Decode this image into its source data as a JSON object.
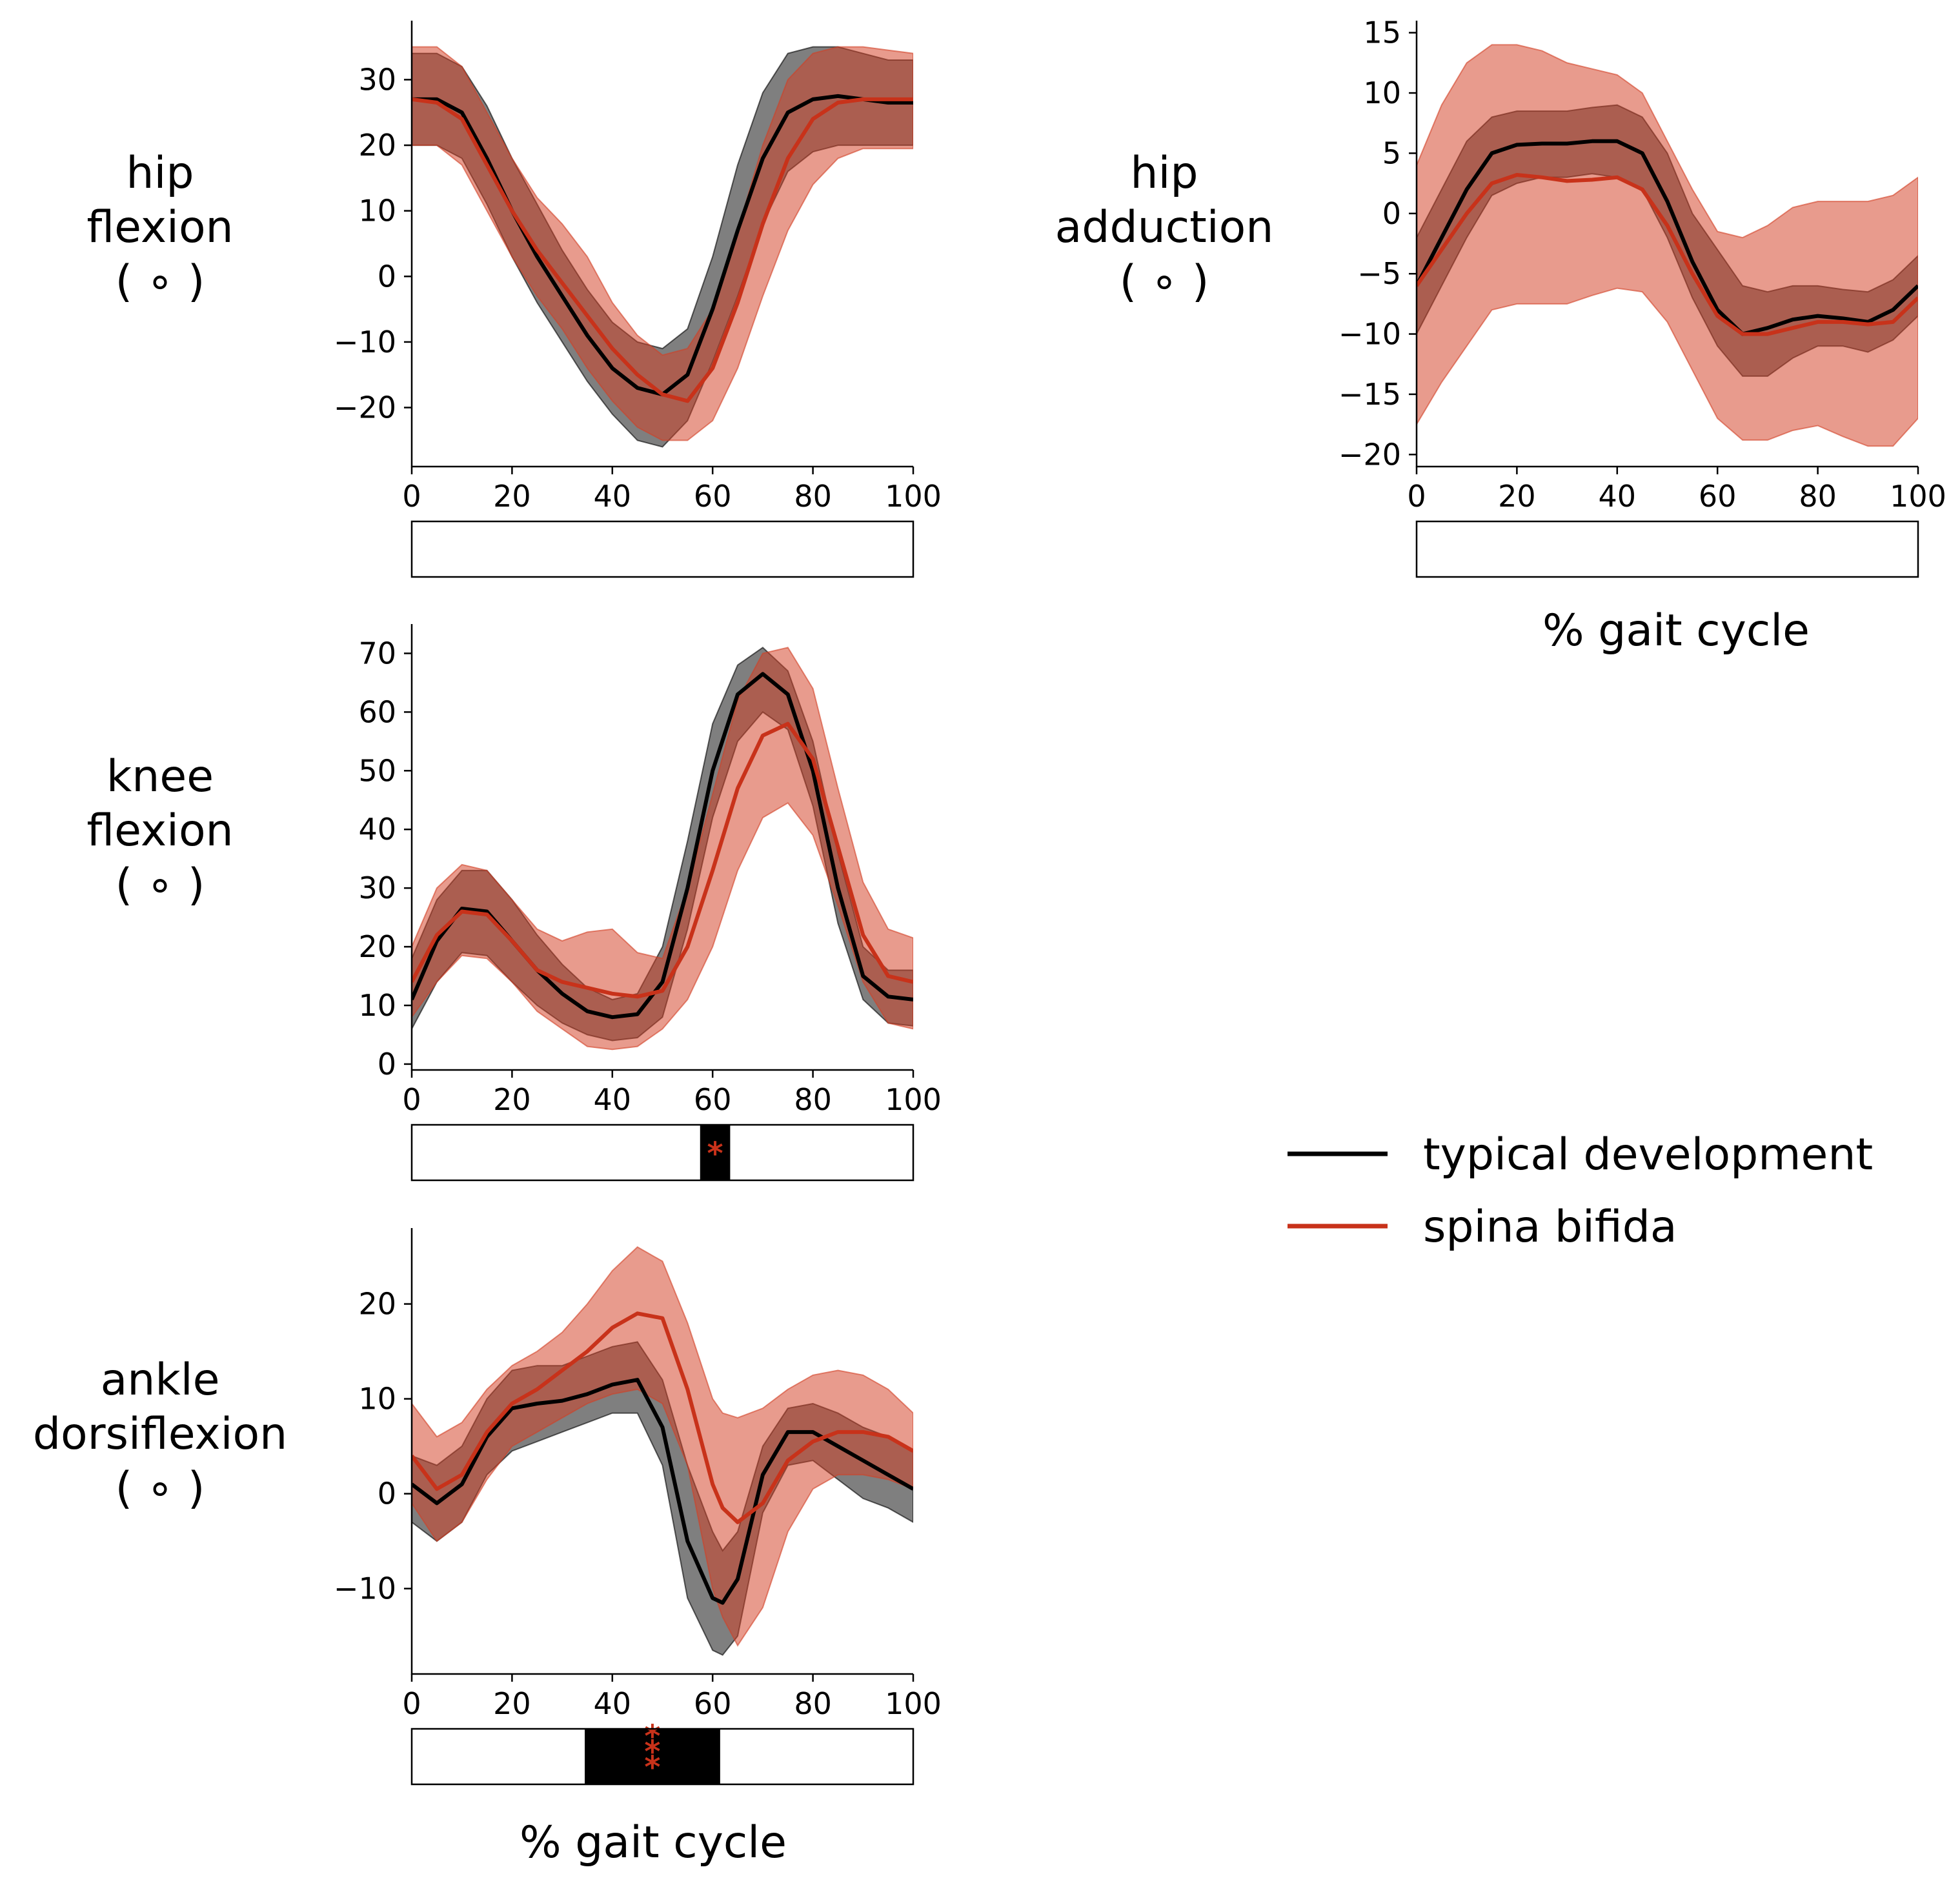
{
  "figure": {
    "xlabel_left": "% gait cycle",
    "xlabel_right": "% gait cycle"
  },
  "legend": {
    "placement": "center-right",
    "items": [
      {
        "label": "typical development",
        "color": "#000000"
      },
      {
        "label": "spina bifida",
        "color": "#c8321a"
      }
    ]
  },
  "colors": {
    "td_line": "#000000",
    "td_band": "#000000",
    "sb_line": "#c8321a",
    "sb_band": "#d23f25",
    "sig_bar": "#000000",
    "sig_star": "#c8321a"
  },
  "chart_data": [
    {
      "id": "hip-flexion",
      "type": "line",
      "ylabel_lines": [
        "hip",
        "flexion",
        "( ∘ )"
      ],
      "xlabel": "",
      "xlim": [
        0,
        100
      ],
      "xticks": [
        0,
        20,
        40,
        60,
        80,
        100
      ],
      "ylim": [
        -29,
        39
      ],
      "yticks": [
        -20,
        -10,
        0,
        10,
        20,
        30
      ],
      "grid": false,
      "series": [
        {
          "name": "typical development",
          "x": [
            0,
            5,
            10,
            15,
            20,
            25,
            30,
            35,
            40,
            45,
            50,
            55,
            60,
            65,
            70,
            75,
            80,
            85,
            90,
            95,
            100
          ],
          "mean": [
            27,
            27,
            25,
            18,
            10,
            3,
            -3,
            -9,
            -14,
            -17,
            -18,
            -15,
            -5,
            7,
            18,
            25,
            27,
            27.5,
            27,
            26.5,
            26.5
          ],
          "upper": [
            34,
            34,
            32,
            26,
            18,
            11,
            4,
            -2,
            -7,
            -10,
            -11,
            -8,
            3,
            17,
            28,
            34,
            35,
            35,
            34,
            33,
            33
          ],
          "lower": [
            20,
            20,
            18,
            11,
            3,
            -4,
            -10,
            -16,
            -21,
            -25,
            -26,
            -22,
            -13,
            -3,
            8,
            16,
            19,
            20,
            20,
            20,
            20
          ]
        },
        {
          "name": "spina bifida",
          "x": [
            0,
            5,
            10,
            15,
            20,
            25,
            30,
            35,
            40,
            45,
            50,
            55,
            60,
            65,
            70,
            75,
            80,
            85,
            90,
            95,
            100
          ],
          "mean": [
            27,
            26.5,
            24,
            17,
            10,
            4,
            -1,
            -6,
            -11,
            -15,
            -18,
            -19,
            -14,
            -4,
            8,
            18,
            24,
            26.5,
            27,
            27,
            27
          ],
          "upper": [
            35,
            35,
            32,
            25,
            18,
            12,
            8,
            3,
            -4,
            -9,
            -12,
            -11,
            -5,
            7,
            20,
            30,
            34,
            35,
            35,
            34.5,
            34
          ],
          "lower": [
            20,
            20,
            17,
            10,
            3,
            -3,
            -8,
            -14,
            -19,
            -23,
            -25,
            -25,
            -22,
            -14,
            -3,
            7,
            14,
            18,
            19.5,
            19.5,
            19.5
          ]
        }
      ],
      "significance": []
    },
    {
      "id": "hip-adduction",
      "type": "line",
      "ylabel_lines": [
        "hip",
        "adduction",
        "( ∘ )"
      ],
      "xlabel": "",
      "xlim": [
        0,
        100
      ],
      "xticks": [
        0,
        20,
        40,
        60,
        80,
        100
      ],
      "ylim": [
        -21,
        16
      ],
      "yticks": [
        -20,
        -15,
        -10,
        -5,
        0,
        5,
        10,
        15
      ],
      "grid": false,
      "series": [
        {
          "name": "typical development",
          "x": [
            0,
            5,
            10,
            15,
            20,
            25,
            30,
            35,
            40,
            45,
            50,
            55,
            60,
            65,
            70,
            75,
            80,
            85,
            90,
            95,
            100
          ],
          "mean": [
            -6,
            -2,
            2,
            5,
            5.7,
            5.8,
            5.8,
            6,
            6,
            5,
            1,
            -4,
            -8,
            -10,
            -9.5,
            -8.8,
            -8.5,
            -8.7,
            -9,
            -8,
            -6
          ],
          "upper": [
            -2,
            2,
            6,
            8,
            8.5,
            8.5,
            8.5,
            8.8,
            9,
            8,
            5,
            0,
            -3,
            -6,
            -6.5,
            -6,
            -6,
            -6.3,
            -6.5,
            -5.5,
            -3.5
          ],
          "lower": [
            -10,
            -6,
            -2,
            1.5,
            2.5,
            3,
            3,
            3.3,
            3,
            2,
            -2,
            -7,
            -11,
            -13.5,
            -13.5,
            -12,
            -11,
            -11,
            -11.5,
            -10.5,
            -8.5
          ]
        },
        {
          "name": "spina bifida",
          "x": [
            0,
            5,
            10,
            15,
            20,
            25,
            30,
            35,
            40,
            45,
            50,
            55,
            60,
            65,
            70,
            75,
            80,
            85,
            90,
            95,
            100
          ],
          "mean": [
            -6,
            -3,
            0,
            2.5,
            3.2,
            3,
            2.7,
            2.8,
            3,
            2,
            -1,
            -5,
            -8.5,
            -10,
            -10,
            -9.5,
            -9,
            -9,
            -9.2,
            -9,
            -7
          ],
          "upper": [
            4,
            9,
            12.5,
            14,
            14,
            13.5,
            12.5,
            12,
            11.5,
            10,
            6,
            2,
            -1.5,
            -2,
            -1,
            0.5,
            1,
            1,
            1,
            1.5,
            3
          ],
          "lower": [
            -17.5,
            -14,
            -11,
            -8,
            -7.5,
            -7.5,
            -7.5,
            -6.8,
            -6.2,
            -6.5,
            -9,
            -13,
            -17,
            -18.8,
            -18.8,
            -18,
            -17.6,
            -18.5,
            -19.3,
            -19.3,
            -17
          ]
        }
      ],
      "significance": []
    },
    {
      "id": "knee-flexion",
      "type": "line",
      "ylabel_lines": [
        "knee",
        "flexion",
        "( ∘ )"
      ],
      "xlabel": "",
      "xlim": [
        0,
        100
      ],
      "xticks": [
        0,
        20,
        40,
        60,
        80,
        100
      ],
      "ylim": [
        -1,
        75
      ],
      "yticks": [
        0,
        10,
        20,
        30,
        40,
        50,
        60,
        70
      ],
      "grid": false,
      "series": [
        {
          "name": "typical development",
          "x": [
            0,
            5,
            10,
            15,
            20,
            25,
            30,
            35,
            40,
            45,
            50,
            55,
            60,
            65,
            70,
            75,
            80,
            85,
            90,
            95,
            100
          ],
          "mean": [
            11,
            21,
            26.5,
            26,
            21,
            16,
            12,
            9,
            8,
            8.5,
            14,
            30,
            50,
            63,
            66.5,
            63,
            50,
            30,
            15,
            11.5,
            11
          ],
          "upper": [
            18,
            28,
            33,
            33,
            28,
            22,
            17,
            13,
            11,
            12,
            20,
            38,
            58,
            68,
            71,
            67,
            55,
            36,
            20,
            16,
            16
          ],
          "lower": [
            6,
            14,
            19,
            18.5,
            14,
            10,
            7,
            5,
            4,
            4.5,
            8,
            23,
            42,
            55,
            60,
            57,
            44,
            24,
            11,
            7,
            6.5
          ]
        },
        {
          "name": "spina bifida",
          "x": [
            0,
            5,
            10,
            15,
            20,
            25,
            30,
            35,
            40,
            45,
            50,
            55,
            60,
            65,
            70,
            75,
            80,
            85,
            90,
            95,
            100
          ],
          "mean": [
            14,
            22,
            26,
            25.5,
            21,
            16,
            14,
            13,
            12,
            11.5,
            12.5,
            20,
            33,
            47,
            56,
            58,
            52,
            37,
            22,
            15,
            14
          ],
          "upper": [
            20,
            30,
            34,
            33,
            28,
            23,
            21,
            22.5,
            23,
            19,
            18,
            30,
            46,
            62,
            70,
            71,
            64,
            47,
            31,
            23,
            21.5
          ],
          "lower": [
            8,
            14,
            18.5,
            18,
            14,
            9,
            6,
            3,
            2.5,
            3,
            6,
            11,
            20,
            33,
            42,
            44.5,
            39,
            27,
            14,
            7,
            6
          ]
        }
      ],
      "significance": [
        {
          "x_start": 57.5,
          "x_end": 63.5,
          "stars": "*"
        }
      ]
    },
    {
      "id": "ankle-dorsiflexion",
      "type": "line",
      "ylabel_lines": [
        "ankle",
        "dorsiflexion",
        "( ∘ )"
      ],
      "xlabel": "",
      "xlim": [
        0,
        100
      ],
      "xticks": [
        0,
        20,
        40,
        60,
        80,
        100
      ],
      "ylim": [
        -19,
        28
      ],
      "yticks": [
        -10,
        0,
        10,
        20
      ],
      "grid": false,
      "series": [
        {
          "name": "typical development",
          "x": [
            0,
            5,
            10,
            15,
            20,
            25,
            30,
            35,
            40,
            45,
            50,
            55,
            60,
            62,
            65,
            70,
            75,
            80,
            85,
            90,
            95,
            100
          ],
          "mean": [
            1,
            -1,
            1,
            6,
            9,
            9.5,
            9.8,
            10.5,
            11.5,
            12,
            7,
            -5,
            -11,
            -11.5,
            -9,
            2,
            6.5,
            6.5,
            5,
            3.5,
            2,
            0.5
          ],
          "upper": [
            4,
            3,
            5,
            10,
            13,
            13.5,
            13.5,
            14.5,
            15.5,
            16,
            12,
            3,
            -4,
            -6,
            -4,
            5,
            9,
            9.5,
            8.5,
            7,
            6,
            4.5
          ],
          "lower": [
            -3,
            -5,
            -3,
            2,
            4.5,
            5.5,
            6.5,
            7.5,
            8.5,
            8.5,
            3,
            -11,
            -16.5,
            -17,
            -15,
            -2,
            3,
            3.5,
            1.5,
            -0.5,
            -1.5,
            -3
          ]
        },
        {
          "name": "spina bifida",
          "x": [
            0,
            5,
            10,
            15,
            20,
            25,
            30,
            35,
            40,
            45,
            50,
            55,
            60,
            62,
            65,
            70,
            75,
            80,
            85,
            90,
            95,
            100
          ],
          "mean": [
            4,
            0.5,
            2,
            6.5,
            9.5,
            11,
            13,
            15,
            17.5,
            19,
            18.5,
            11,
            1,
            -1.5,
            -3,
            -1,
            3.5,
            5.5,
            6.5,
            6.5,
            6,
            4.5
          ],
          "upper": [
            9.5,
            6,
            7.5,
            11,
            13.5,
            15,
            17,
            20,
            23.5,
            26,
            24.5,
            18,
            10,
            8.5,
            8,
            9,
            11,
            12.5,
            13,
            12.5,
            11,
            8.5
          ],
          "lower": [
            -1,
            -5,
            -3,
            1.5,
            5,
            6.5,
            8,
            9.5,
            10.5,
            11,
            9.5,
            3,
            -10,
            -13,
            -16,
            -12,
            -4,
            0.5,
            2,
            2,
            1.5,
            0.5
          ]
        }
      ],
      "significance": [
        {
          "x_start": 34.5,
          "x_end": 61.5,
          "stars": "***"
        }
      ]
    }
  ]
}
